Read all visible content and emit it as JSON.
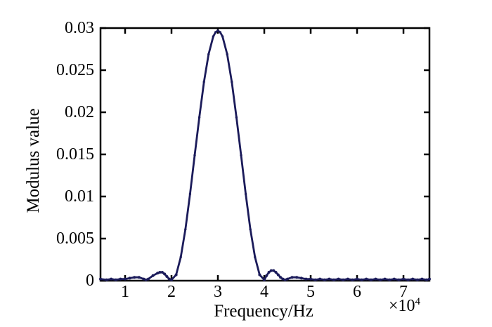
{
  "figure": {
    "background": "#ffffff"
  },
  "chart_data": {
    "type": "line",
    "title": "",
    "xlabel": "Frequency/Hz",
    "ylabel": "Modulus value",
    "x_unit_multiplier": {
      "base": "×10",
      "exponent": "4"
    },
    "xlim": [
      0.47,
      7.56
    ],
    "ylim": [
      0,
      0.03
    ],
    "xticks": {
      "values": [
        1,
        2,
        3,
        4,
        5,
        6,
        7
      ],
      "labels": [
        "1",
        "2",
        "3",
        "4",
        "5",
        "6",
        "7"
      ]
    },
    "yticks": {
      "values": [
        0,
        0.005,
        0.01,
        0.015,
        0.02,
        0.025,
        0.03
      ],
      "labels": [
        "0",
        "0.005",
        "0.01",
        "0.015",
        "0.02",
        "0.025",
        "0.03"
      ]
    },
    "grid": false,
    "legend": null,
    "axis_color": "#000000",
    "line_color": "#1b1b5a",
    "marker": "dot",
    "peak": {
      "x": 3.0,
      "y": 0.0297
    },
    "points": [
      [
        0.47,
        0.0002
      ],
      [
        0.6,
        0.0001
      ],
      [
        0.7,
        0.0002
      ],
      [
        0.8,
        0.0001
      ],
      [
        0.9,
        0.0002
      ],
      [
        1.0,
        0.0002
      ],
      [
        1.1,
        0.0003
      ],
      [
        1.2,
        0.0004
      ],
      [
        1.3,
        0.0004
      ],
      [
        1.4,
        0.0002
      ],
      [
        1.45,
        0.0001
      ],
      [
        1.5,
        0.0002
      ],
      [
        1.6,
        0.0006
      ],
      [
        1.7,
        0.0009
      ],
      [
        1.75,
        0.001
      ],
      [
        1.8,
        0.001
      ],
      [
        1.85,
        0.0008
      ],
      [
        1.9,
        0.0005
      ],
      [
        1.95,
        0.0002
      ],
      [
        2.0,
        0.0001
      ],
      [
        2.1,
        0.0007
      ],
      [
        2.2,
        0.0028
      ],
      [
        2.3,
        0.0061
      ],
      [
        2.4,
        0.0103
      ],
      [
        2.5,
        0.0149
      ],
      [
        2.6,
        0.0194
      ],
      [
        2.7,
        0.0236
      ],
      [
        2.8,
        0.0269
      ],
      [
        2.9,
        0.029
      ],
      [
        2.95,
        0.0295
      ],
      [
        3.0,
        0.0297
      ],
      [
        3.05,
        0.0295
      ],
      [
        3.1,
        0.029
      ],
      [
        3.2,
        0.0269
      ],
      [
        3.3,
        0.0236
      ],
      [
        3.4,
        0.0194
      ],
      [
        3.5,
        0.0149
      ],
      [
        3.6,
        0.0103
      ],
      [
        3.7,
        0.0061
      ],
      [
        3.8,
        0.0028
      ],
      [
        3.9,
        0.0007
      ],
      [
        4.0,
        0.0001
      ],
      [
        4.05,
        0.0006
      ],
      [
        4.1,
        0.001
      ],
      [
        4.15,
        0.0012
      ],
      [
        4.2,
        0.0012
      ],
      [
        4.25,
        0.001
      ],
      [
        4.3,
        0.0007
      ],
      [
        4.35,
        0.0004
      ],
      [
        4.4,
        0.0002
      ],
      [
        4.45,
        0.0001
      ],
      [
        4.5,
        0.0002
      ],
      [
        4.6,
        0.0004
      ],
      [
        4.7,
        0.0004
      ],
      [
        4.8,
        0.0003
      ],
      [
        4.9,
        0.0002
      ],
      [
        5.0,
        0.0002
      ],
      [
        5.1,
        0.0001
      ],
      [
        5.2,
        0.0002
      ],
      [
        5.3,
        0.0001
      ],
      [
        5.4,
        0.0002
      ],
      [
        5.5,
        0.0001
      ],
      [
        5.6,
        0.0002
      ],
      [
        5.7,
        0.0001
      ],
      [
        5.8,
        0.0002
      ],
      [
        5.9,
        0.0001
      ],
      [
        6.0,
        0.0002
      ],
      [
        6.1,
        0.0001
      ],
      [
        6.2,
        0.0002
      ],
      [
        6.3,
        0.0001
      ],
      [
        6.4,
        0.0002
      ],
      [
        6.5,
        0.0001
      ],
      [
        6.6,
        0.0002
      ],
      [
        6.7,
        0.0001
      ],
      [
        6.8,
        0.0002
      ],
      [
        6.9,
        0.0001
      ],
      [
        7.0,
        0.0002
      ],
      [
        7.1,
        0.0001
      ],
      [
        7.2,
        0.0002
      ],
      [
        7.3,
        0.0001
      ],
      [
        7.4,
        0.0002
      ],
      [
        7.5,
        0.0001
      ],
      [
        7.56,
        0.0002
      ]
    ]
  }
}
